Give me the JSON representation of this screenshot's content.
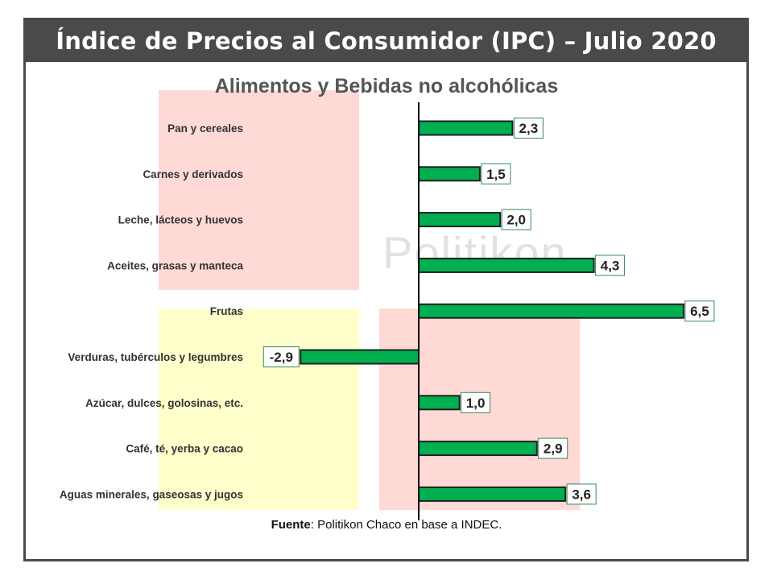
{
  "header": {
    "title": "Índice de Precios al Consumidor (IPC) – Julio 2020"
  },
  "watermark": "Politikon",
  "footer": {
    "source_label": "Fuente",
    "source_text": ": Politikon Chaco en base a INDEC."
  },
  "colors": {
    "bar_fill": "#00b050",
    "bar_stroke": "#1f1f1f",
    "label_border": "#2e8b57",
    "header_bg": "#4a4a4a"
  },
  "chart_data": {
    "type": "bar",
    "orientation": "horizontal",
    "title": "Alimentos y Bebidas no alcohólicas",
    "categories": [
      "Pan y cereales",
      "Carnes y derivados",
      "Leche, lácteos y huevos",
      "Aceites, grasas y manteca",
      "Frutas",
      "Verduras, tubérculos y legumbres",
      "Azúcar, dulces, golosinas, etc.",
      "Café, té, yerba y cacao",
      "Aguas minerales, gaseosas y jugos"
    ],
    "values": [
      2.3,
      1.5,
      2.0,
      4.3,
      6.5,
      -2.9,
      1.0,
      2.9,
      3.6
    ],
    "value_labels": [
      "2,3",
      "1,5",
      "2,0",
      "4,3",
      "6,5",
      "-2,9",
      "1,0",
      "2,9",
      "3,6"
    ],
    "xlim": [
      -4.2,
      7.8
    ],
    "grid": false,
    "legend": "none"
  }
}
